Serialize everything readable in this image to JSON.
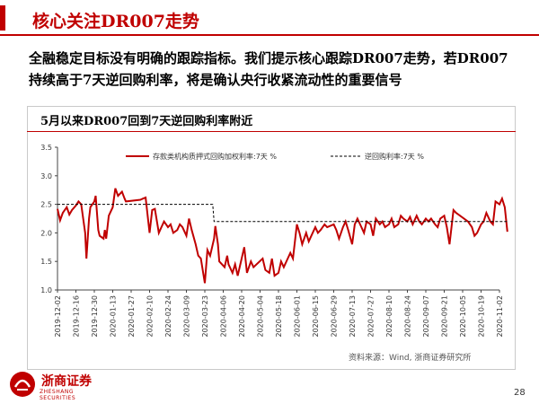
{
  "slide": {
    "title": "核心关注DR007走势",
    "body": "全融稳定目标没有明确的跟踪指标。我们提示核心跟踪DR007走势，若DR007持续高于7天逆回购利率，将是确认央行收紧流动性的重要信号",
    "chart_title": "5月以来DR007回到7天逆回购利率附近",
    "source": "资料来源：Wind, 浙商证券研究所",
    "logo_cn": "浙商证券",
    "logo_en": "ZHESHANG SECURITIES",
    "page_number": "28"
  },
  "colors": {
    "accent": "#c00000",
    "series_line": "#c00000",
    "dashed_line": "#000000"
  },
  "chart_data": {
    "type": "line",
    "title": "5月以来DR007回到7天逆回购利率附近",
    "x_ticks": [
      "2019-12-02",
      "2019-12-16",
      "2019-12-30",
      "2020-01-13",
      "2020-01-27",
      "2020-02-10",
      "2020-02-24",
      "2020-03-09",
      "2020-03-23",
      "2020-04-06",
      "2020-04-20",
      "2020-05-04",
      "2020-05-18",
      "2020-06-01",
      "2020-06-15",
      "2020-06-29",
      "2020-07-13",
      "2020-07-27",
      "2020-08-10",
      "2020-08-24",
      "2020-09-07",
      "2020-09-21",
      "2020-10-05",
      "2020-10-19",
      "2020-11-02"
    ],
    "ylim": [
      1.0,
      3.5
    ],
    "y_ticks": [
      "1.0",
      "1.5",
      "2.0",
      "2.5",
      "3.0",
      "3.5"
    ],
    "legend_position": "top",
    "series": [
      {
        "name": "存款类机构质押式回购加权利率:7天 %",
        "style": "solid",
        "points": [
          [
            "2019-12-02",
            2.42
          ],
          [
            "2019-12-04",
            2.22
          ],
          [
            "2019-12-06",
            2.35
          ],
          [
            "2019-12-09",
            2.45
          ],
          [
            "2019-12-11",
            2.32
          ],
          [
            "2019-12-13",
            2.4
          ],
          [
            "2019-12-16",
            2.48
          ],
          [
            "2019-12-18",
            2.55
          ],
          [
            "2019-12-20",
            2.5
          ],
          [
            "2019-12-23",
            2.0
          ],
          [
            "2019-12-24",
            1.55
          ],
          [
            "2019-12-26",
            2.25
          ],
          [
            "2019-12-27",
            2.45
          ],
          [
            "2019-12-30",
            2.55
          ],
          [
            "2019-12-31",
            2.65
          ],
          [
            "2020-01-02",
            2.05
          ],
          [
            "2020-01-03",
            1.95
          ],
          [
            "2020-01-06",
            1.9
          ],
          [
            "2020-01-07",
            2.05
          ],
          [
            "2020-01-08",
            1.9
          ],
          [
            "2020-01-10",
            2.3
          ],
          [
            "2020-01-13",
            2.45
          ],
          [
            "2020-01-15",
            2.78
          ],
          [
            "2020-01-17",
            2.65
          ],
          [
            "2020-01-20",
            2.72
          ],
          [
            "2020-01-22",
            2.6
          ],
          [
            "2020-01-23",
            2.55
          ],
          [
            "2020-02-03",
            2.58
          ],
          [
            "2020-02-05",
            2.6
          ],
          [
            "2020-02-07",
            2.62
          ],
          [
            "2020-02-10",
            2.0
          ],
          [
            "2020-02-12",
            2.4
          ],
          [
            "2020-02-14",
            2.42
          ],
          [
            "2020-02-17",
            2.0
          ],
          [
            "2020-02-19",
            2.1
          ],
          [
            "2020-02-21",
            2.2
          ],
          [
            "2020-02-24",
            2.1
          ],
          [
            "2020-02-26",
            2.15
          ],
          [
            "2020-02-28",
            2.0
          ],
          [
            "2020-03-02",
            2.05
          ],
          [
            "2020-03-04",
            2.15
          ],
          [
            "2020-03-06",
            2.1
          ],
          [
            "2020-03-09",
            1.95
          ],
          [
            "2020-03-11",
            2.25
          ],
          [
            "2020-03-13",
            2.05
          ],
          [
            "2020-03-16",
            1.8
          ],
          [
            "2020-03-18",
            1.6
          ],
          [
            "2020-03-20",
            1.55
          ],
          [
            "2020-03-23",
            1.12
          ],
          [
            "2020-03-25",
            1.7
          ],
          [
            "2020-03-27",
            1.6
          ],
          [
            "2020-03-30",
            1.9
          ],
          [
            "2020-03-31",
            2.12
          ],
          [
            "2020-04-02",
            1.8
          ],
          [
            "2020-04-03",
            1.5
          ],
          [
            "2020-04-07",
            1.4
          ],
          [
            "2020-04-09",
            1.6
          ],
          [
            "2020-04-10",
            1.45
          ],
          [
            "2020-04-13",
            1.3
          ],
          [
            "2020-04-15",
            1.45
          ],
          [
            "2020-04-17",
            1.25
          ],
          [
            "2020-04-20",
            1.55
          ],
          [
            "2020-04-22",
            1.75
          ],
          [
            "2020-04-24",
            1.3
          ],
          [
            "2020-04-27",
            1.5
          ],
          [
            "2020-04-29",
            1.4
          ],
          [
            "2020-05-06",
            1.55
          ],
          [
            "2020-05-08",
            1.35
          ],
          [
            "2020-05-11",
            1.3
          ],
          [
            "2020-05-13",
            1.55
          ],
          [
            "2020-05-15",
            1.25
          ],
          [
            "2020-05-18",
            1.3
          ],
          [
            "2020-05-20",
            1.5
          ],
          [
            "2020-05-22",
            1.4
          ],
          [
            "2020-05-25",
            1.55
          ],
          [
            "2020-05-27",
            1.65
          ],
          [
            "2020-05-29",
            1.55
          ],
          [
            "2020-06-01",
            2.15
          ],
          [
            "2020-06-03",
            2.0
          ],
          [
            "2020-06-05",
            1.8
          ],
          [
            "2020-06-08",
            2.0
          ],
          [
            "2020-06-10",
            1.85
          ],
          [
            "2020-06-12",
            1.95
          ],
          [
            "2020-06-15",
            2.1
          ],
          [
            "2020-06-17",
            2.0
          ],
          [
            "2020-06-19",
            2.05
          ],
          [
            "2020-06-22",
            2.15
          ],
          [
            "2020-06-24",
            2.1
          ],
          [
            "2020-06-29",
            2.15
          ],
          [
            "2020-07-01",
            2.05
          ],
          [
            "2020-07-03",
            1.9
          ],
          [
            "2020-07-06",
            2.1
          ],
          [
            "2020-07-08",
            2.2
          ],
          [
            "2020-07-10",
            2.05
          ],
          [
            "2020-07-13",
            1.8
          ],
          [
            "2020-07-15",
            2.15
          ],
          [
            "2020-07-17",
            2.25
          ],
          [
            "2020-07-20",
            2.1
          ],
          [
            "2020-07-22",
            2.0
          ],
          [
            "2020-07-24",
            2.2
          ],
          [
            "2020-07-27",
            2.15
          ],
          [
            "2020-07-29",
            1.95
          ],
          [
            "2020-07-31",
            2.25
          ],
          [
            "2020-08-03",
            2.15
          ],
          [
            "2020-08-05",
            2.2
          ],
          [
            "2020-08-07",
            2.1
          ],
          [
            "2020-08-10",
            2.15
          ],
          [
            "2020-08-12",
            2.25
          ],
          [
            "2020-08-14",
            2.1
          ],
          [
            "2020-08-17",
            2.15
          ],
          [
            "2020-08-19",
            2.3
          ],
          [
            "2020-08-21",
            2.25
          ],
          [
            "2020-08-24",
            2.2
          ],
          [
            "2020-08-26",
            2.28
          ],
          [
            "2020-08-28",
            2.15
          ],
          [
            "2020-08-31",
            2.3
          ],
          [
            "2020-09-02",
            2.2
          ],
          [
            "2020-09-04",
            2.15
          ],
          [
            "2020-09-07",
            2.25
          ],
          [
            "2020-09-09",
            2.2
          ],
          [
            "2020-09-11",
            2.25
          ],
          [
            "2020-09-14",
            2.15
          ],
          [
            "2020-09-16",
            2.1
          ],
          [
            "2020-09-18",
            2.25
          ],
          [
            "2020-09-21",
            2.3
          ],
          [
            "2020-09-23",
            2.1
          ],
          [
            "2020-09-25",
            1.8
          ],
          [
            "2020-09-28",
            2.4
          ],
          [
            "2020-09-30",
            2.35
          ],
          [
            "2020-10-09",
            2.2
          ],
          [
            "2020-10-12",
            2.1
          ],
          [
            "2020-10-14",
            1.95
          ],
          [
            "2020-10-16",
            2.0
          ],
          [
            "2020-10-19",
            2.15
          ],
          [
            "2020-10-21",
            2.2
          ],
          [
            "2020-10-23",
            2.35
          ],
          [
            "2020-10-26",
            2.2
          ],
          [
            "2020-10-28",
            2.15
          ],
          [
            "2020-10-30",
            2.55
          ],
          [
            "2020-11-02",
            2.5
          ],
          [
            "2020-11-04",
            2.6
          ],
          [
            "2020-11-06",
            2.45
          ],
          [
            "2020-11-08",
            2.02
          ]
        ]
      },
      {
        "name": "逆回购利率:7天 %",
        "style": "dashed",
        "points": [
          [
            "2019-12-02",
            2.5
          ],
          [
            "2020-03-29",
            2.5
          ],
          [
            "2020-03-30",
            2.2
          ],
          [
            "2020-11-08",
            2.2
          ]
        ]
      }
    ]
  }
}
